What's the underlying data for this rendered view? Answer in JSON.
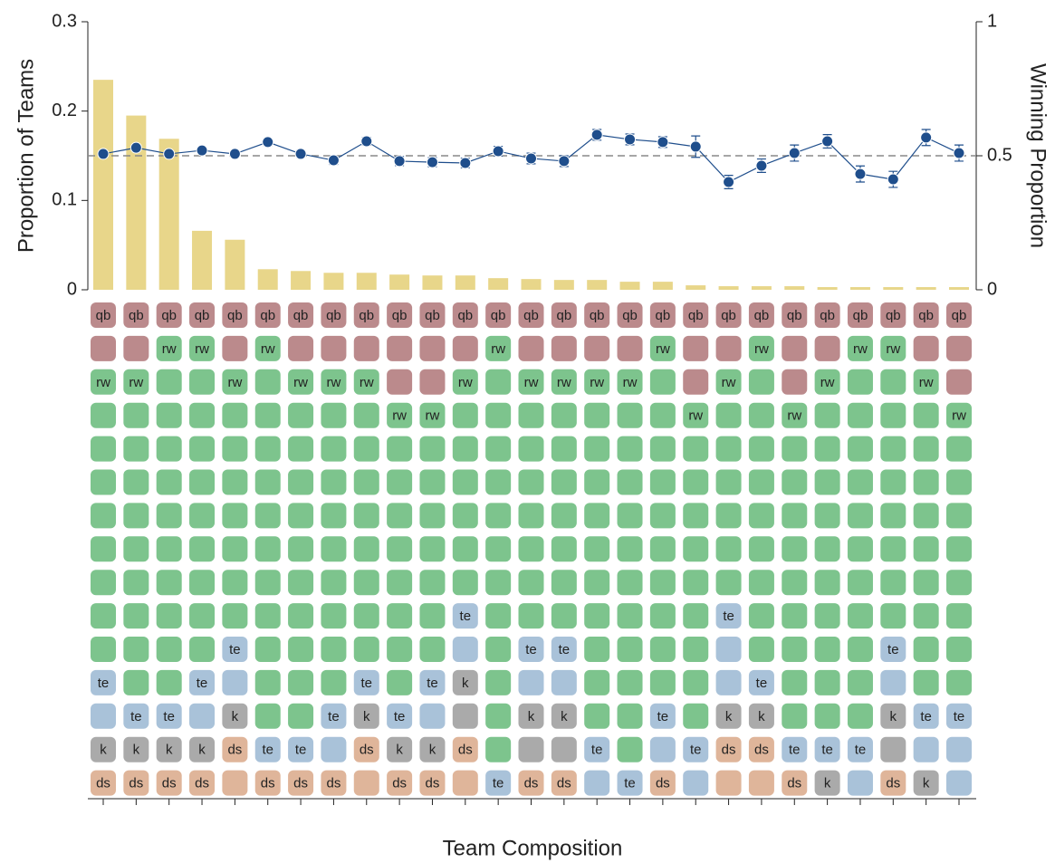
{
  "chart_data": {
    "type": "bar_line_composition",
    "xlabel": "Team Composition",
    "ylabel": "Proportion of Teams",
    "y2label": "Winning Proportion",
    "ylim": [
      0,
      0.3
    ],
    "yticks": [
      0,
      0.1,
      0.2,
      0.3
    ],
    "y2lim": [
      0,
      1
    ],
    "y2ticks": [
      0,
      0.5,
      1
    ],
    "reference_line": 0.5,
    "series": [
      {
        "name": "Proportion of Teams",
        "color": "#e8d68a",
        "axis": "y",
        "values": [
          0.235,
          0.195,
          0.169,
          0.066,
          0.056,
          0.023,
          0.021,
          0.019,
          0.019,
          0.017,
          0.016,
          0.016,
          0.013,
          0.012,
          0.011,
          0.011,
          0.009,
          0.009,
          0.005,
          0.004,
          0.004,
          0.004,
          0.003,
          0.003,
          0.003,
          0.003,
          0.003
        ]
      },
      {
        "name": "Winning Proportion",
        "color": "#1f4e8c",
        "axis": "y2",
        "values": [
          0.507,
          0.53,
          0.507,
          0.52,
          0.507,
          0.551,
          0.507,
          0.483,
          0.554,
          0.48,
          0.476,
          0.473,
          0.517,
          0.49,
          0.48,
          0.578,
          0.561,
          0.551,
          0.534,
          0.402,
          0.463,
          0.51,
          0.554,
          0.432,
          0.412,
          0.568,
          0.51
        ],
        "errors": [
          0.012,
          0.012,
          0.01,
          0.01,
          0.01,
          0.013,
          0.013,
          0.015,
          0.015,
          0.017,
          0.017,
          0.018,
          0.018,
          0.02,
          0.02,
          0.02,
          0.02,
          0.02,
          0.04,
          0.025,
          0.025,
          0.03,
          0.025,
          0.03,
          0.03,
          0.03,
          0.03
        ]
      }
    ],
    "roles": [
      {
        "name": "qb",
        "color": "#bb8a8c"
      },
      {
        "name": "rw",
        "color": "#7dc48d"
      },
      {
        "name": "te",
        "color": "#a9c2d9"
      },
      {
        "name": "k",
        "color": "#aaaaaa"
      },
      {
        "name": "ds",
        "color": "#dfb59a"
      }
    ],
    "composition": [
      [
        2,
        9,
        2,
        1,
        1
      ],
      [
        2,
        10,
        1,
        1,
        1
      ],
      [
        1,
        11,
        1,
        1,
        1
      ],
      [
        1,
        10,
        2,
        1,
        1
      ],
      [
        2,
        8,
        2,
        1,
        2
      ],
      [
        1,
        12,
        1,
        0,
        1
      ],
      [
        2,
        11,
        1,
        0,
        1
      ],
      [
        2,
        10,
        2,
        0,
        1
      ],
      [
        2,
        9,
        1,
        1,
        2
      ],
      [
        3,
        9,
        1,
        1,
        1
      ],
      [
        3,
        8,
        2,
        1,
        1
      ],
      [
        2,
        7,
        2,
        2,
        2
      ],
      [
        1,
        13,
        1,
        0,
        0
      ],
      [
        2,
        8,
        2,
        2,
        1
      ],
      [
        2,
        8,
        2,
        2,
        1
      ],
      [
        2,
        11,
        2,
        0,
        0
      ],
      [
        2,
        12,
        1,
        0,
        0
      ],
      [
        1,
        11,
        2,
        0,
        1
      ],
      [
        3,
        10,
        2,
        0,
        0
      ],
      [
        2,
        7,
        3,
        1,
        2
      ],
      [
        1,
        10,
        1,
        1,
        2
      ],
      [
        3,
        10,
        1,
        0,
        1
      ],
      [
        2,
        11,
        1,
        1,
        0
      ],
      [
        1,
        12,
        2,
        0,
        0
      ],
      [
        1,
        9,
        2,
        2,
        1
      ],
      [
        2,
        10,
        2,
        1,
        0
      ],
      [
        3,
        9,
        3,
        0,
        0
      ]
    ]
  }
}
